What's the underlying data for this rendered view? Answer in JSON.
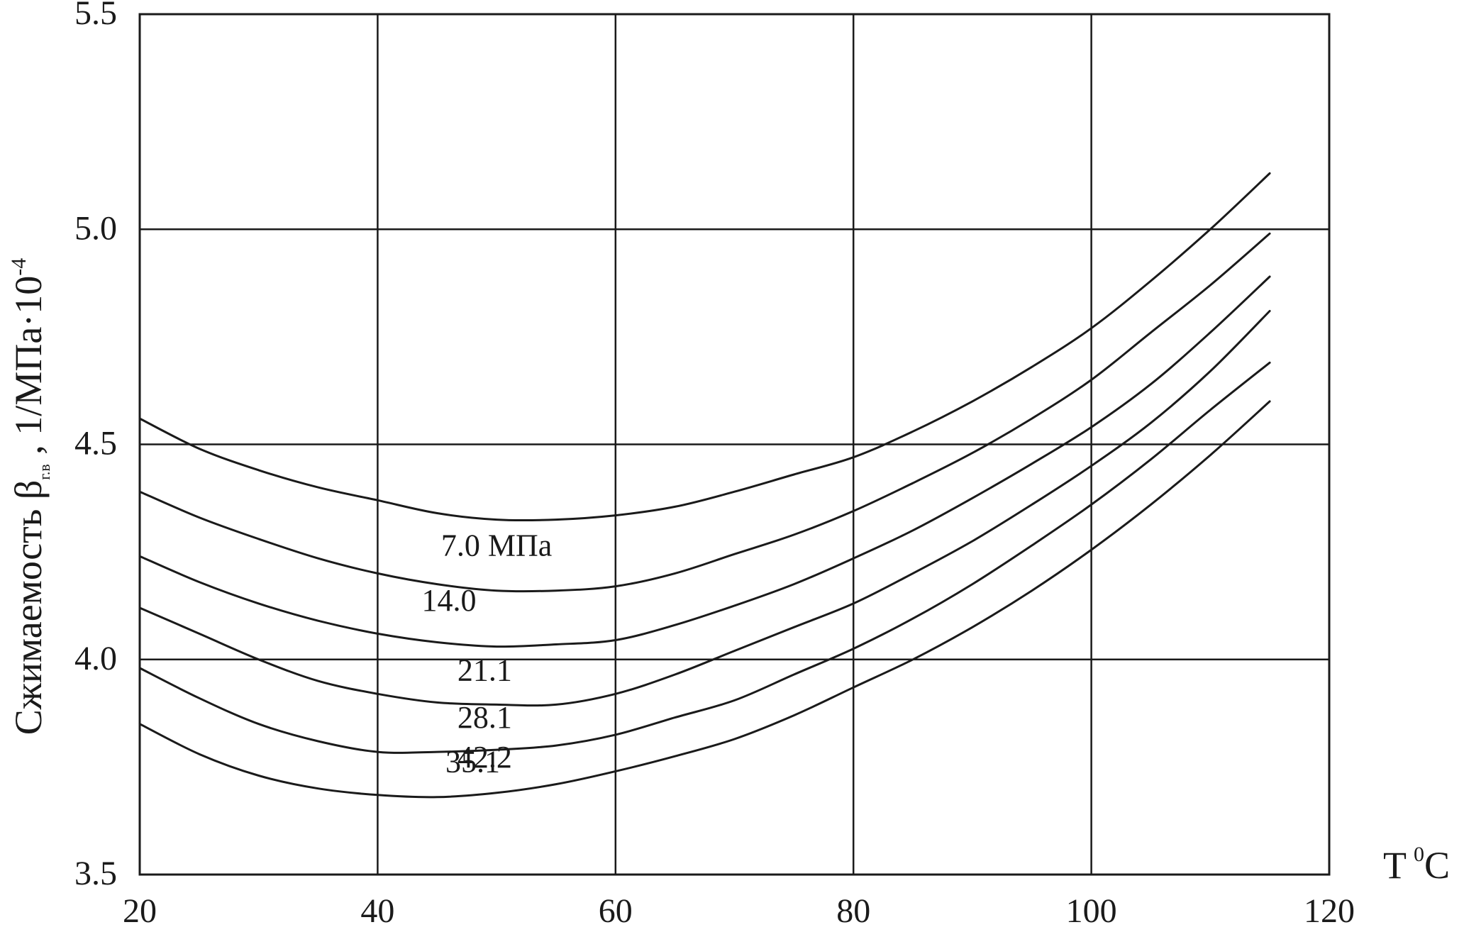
{
  "chart_data": {
    "type": "line",
    "title": "",
    "xlabel": {
      "text": "T",
      "sup": "0",
      "unit": "C"
    },
    "ylabel": {
      "prefix": "Сжимаемость β",
      "sub": "г.в",
      "middle": " , 1/МПа·10",
      "sup": "-4"
    },
    "xlim": [
      20,
      120
    ],
    "ylim": [
      3.5,
      5.5
    ],
    "x_ticks": [
      "20",
      "40",
      "60",
      "80",
      "100",
      "120"
    ],
    "y_ticks": [
      "3.5",
      "4.0",
      "4.5",
      "5.0",
      "5.5"
    ],
    "grid": true,
    "series": [
      {
        "name": "7.0 МПа",
        "points": [
          [
            20,
            4.56
          ],
          [
            25,
            4.49
          ],
          [
            30,
            4.44
          ],
          [
            35,
            4.4
          ],
          [
            40,
            4.37
          ],
          [
            45,
            4.34
          ],
          [
            50,
            4.325
          ],
          [
            55,
            4.325
          ],
          [
            60,
            4.335
          ],
          [
            65,
            4.355
          ],
          [
            70,
            4.39
          ],
          [
            75,
            4.43
          ],
          [
            80,
            4.47
          ],
          [
            85,
            4.53
          ],
          [
            90,
            4.6
          ],
          [
            95,
            4.68
          ],
          [
            100,
            4.77
          ],
          [
            105,
            4.88
          ],
          [
            110,
            5.0
          ],
          [
            115,
            5.13
          ]
        ]
      },
      {
        "name": "14.0",
        "points": [
          [
            20,
            4.39
          ],
          [
            25,
            4.33
          ],
          [
            30,
            4.28
          ],
          [
            35,
            4.235
          ],
          [
            40,
            4.2
          ],
          [
            45,
            4.175
          ],
          [
            50,
            4.16
          ],
          [
            55,
            4.16
          ],
          [
            60,
            4.17
          ],
          [
            65,
            4.2
          ],
          [
            70,
            4.245
          ],
          [
            75,
            4.29
          ],
          [
            80,
            4.345
          ],
          [
            85,
            4.41
          ],
          [
            90,
            4.48
          ],
          [
            95,
            4.56
          ],
          [
            100,
            4.65
          ],
          [
            105,
            4.76
          ],
          [
            110,
            4.87
          ],
          [
            115,
            4.99
          ]
        ]
      },
      {
        "name": "21.1",
        "points": [
          [
            20,
            4.24
          ],
          [
            25,
            4.18
          ],
          [
            30,
            4.13
          ],
          [
            35,
            4.09
          ],
          [
            40,
            4.06
          ],
          [
            45,
            4.04
          ],
          [
            50,
            4.03
          ],
          [
            55,
            4.035
          ],
          [
            60,
            4.045
          ],
          [
            65,
            4.08
          ],
          [
            70,
            4.125
          ],
          [
            75,
            4.175
          ],
          [
            80,
            4.235
          ],
          [
            85,
            4.3
          ],
          [
            90,
            4.375
          ],
          [
            95,
            4.455
          ],
          [
            100,
            4.54
          ],
          [
            105,
            4.64
          ],
          [
            110,
            4.76
          ],
          [
            115,
            4.89
          ]
        ]
      },
      {
        "name": "28.1",
        "points": [
          [
            20,
            4.12
          ],
          [
            25,
            4.06
          ],
          [
            30,
            4.0
          ],
          [
            35,
            3.95
          ],
          [
            40,
            3.92
          ],
          [
            45,
            3.9
          ],
          [
            50,
            3.895
          ],
          [
            55,
            3.895
          ],
          [
            60,
            3.92
          ],
          [
            65,
            3.965
          ],
          [
            70,
            4.02
          ],
          [
            75,
            4.075
          ],
          [
            80,
            4.13
          ],
          [
            85,
            4.2
          ],
          [
            90,
            4.275
          ],
          [
            95,
            4.36
          ],
          [
            100,
            4.45
          ],
          [
            105,
            4.55
          ],
          [
            110,
            4.67
          ],
          [
            115,
            4.81
          ]
        ]
      },
      {
        "name": "35.1",
        "points": [
          [
            20,
            3.98
          ],
          [
            25,
            3.91
          ],
          [
            30,
            3.85
          ],
          [
            35,
            3.81
          ],
          [
            40,
            3.785
          ],
          [
            45,
            3.785
          ],
          [
            50,
            3.79
          ],
          [
            55,
            3.8
          ],
          [
            60,
            3.825
          ],
          [
            65,
            3.865
          ],
          [
            70,
            3.905
          ],
          [
            75,
            3.965
          ],
          [
            80,
            4.025
          ],
          [
            85,
            4.095
          ],
          [
            90,
            4.175
          ],
          [
            95,
            4.265
          ],
          [
            100,
            4.36
          ],
          [
            105,
            4.465
          ],
          [
            110,
            4.58
          ],
          [
            115,
            4.69
          ]
        ]
      },
      {
        "name": "42.2",
        "points": [
          [
            20,
            3.85
          ],
          [
            25,
            3.78
          ],
          [
            30,
            3.73
          ],
          [
            35,
            3.7
          ],
          [
            40,
            3.685
          ],
          [
            45,
            3.68
          ],
          [
            50,
            3.69
          ],
          [
            55,
            3.71
          ],
          [
            60,
            3.74
          ],
          [
            65,
            3.775
          ],
          [
            70,
            3.815
          ],
          [
            75,
            3.87
          ],
          [
            80,
            3.935
          ],
          [
            85,
            4.0
          ],
          [
            90,
            4.075
          ],
          [
            95,
            4.16
          ],
          [
            100,
            4.255
          ],
          [
            105,
            4.36
          ],
          [
            110,
            4.475
          ],
          [
            115,
            4.6
          ]
        ]
      }
    ],
    "curve_labels": [
      "7.0 МПа",
      "14.0",
      "21.1",
      "28.1",
      "35.1",
      "42.2"
    ]
  }
}
